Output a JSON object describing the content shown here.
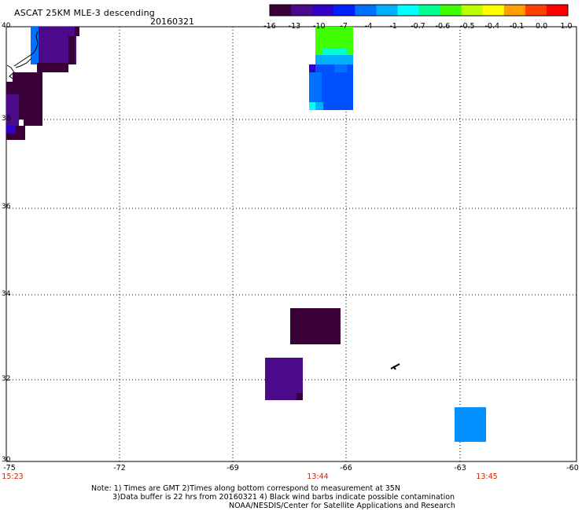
{
  "title": "ASCAT 25KM MLE-3 descending",
  "date": "20160321",
  "colorbar": {
    "tick_labels": [
      "-16",
      "-13",
      "-10",
      "-7",
      "-4",
      "-1",
      "-0.7",
      "-0.6",
      "-0.5",
      "-0.4",
      "-0.1",
      "0.0",
      "1.0"
    ],
    "colors": [
      "#3a0038",
      "#4a0a8a",
      "#3000c8",
      "#0020ff",
      "#0070ff",
      "#00b0ff",
      "#00ffff",
      "#00ff90",
      "#40ff00",
      "#c0ff00",
      "#ffff00",
      "#ffa000",
      "#ff4000",
      "#ff0000"
    ]
  },
  "map": {
    "lat_labels": [
      "40",
      "38",
      "36",
      "34",
      "32",
      "30"
    ],
    "lon_labels": [
      "-75",
      "-72",
      "-69",
      "-66",
      "-63",
      "-60"
    ],
    "time_labels": [
      {
        "lon": -75,
        "text": "15:23"
      },
      {
        "lon": -66,
        "text": "13:44"
      },
      {
        "lon": -63,
        "text": "13:45"
      }
    ]
  },
  "notes": {
    "line1": "Note: 1) Times are GMT 2)Times along bottom correspond to measurement at 35N",
    "line2": "3)Data buffer is 22 hrs from 20160321 4) Black wind barbs indicate possible contamination",
    "line3": "NOAA/NESDIS/Center for Satellite Applications and Research"
  }
}
